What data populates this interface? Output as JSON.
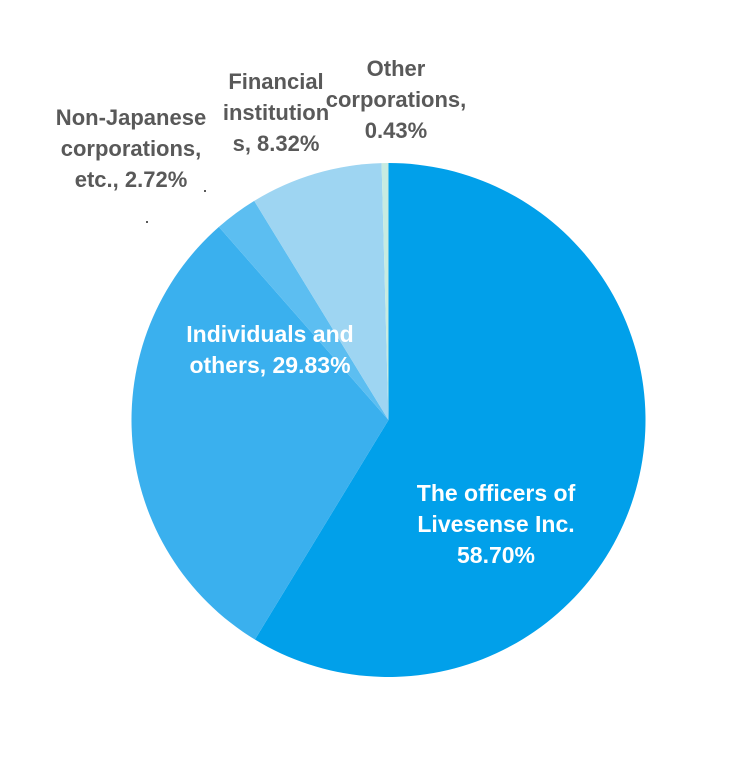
{
  "chart_data": {
    "type": "pie",
    "title": "",
    "direction": "clockwise",
    "start_angle_deg": 0,
    "legend": "none",
    "center": {
      "x": 388.5,
      "y": 420
    },
    "radius": 257,
    "series": [
      {
        "key": "officers",
        "label": "The officers of Livesense Inc.",
        "value": 58.7,
        "color": "#01A0EA"
      },
      {
        "key": "individuals",
        "label": "Individuals and others",
        "value": 29.83,
        "color": "#3AB0EE"
      },
      {
        "key": "non_japanese",
        "label": "Non-Japanese corporations, etc.",
        "value": 2.72,
        "color": "#5CBEF1"
      },
      {
        "key": "financial",
        "label": "Financial institutions",
        "value": 8.32,
        "color": "#9ED5F2"
      },
      {
        "key": "other",
        "label": "Other corporations",
        "value": 0.43,
        "color": "#C7EBE1"
      }
    ],
    "data_labels": [
      "The officers of Livesense Inc. 58.70%",
      "Individuals and others, 29.83%",
      "Non-Japanese corporations, etc., 2.72%",
      "Financial institutions, 8.32%",
      "Other corporations, 0.43%"
    ]
  },
  "labels": {
    "officers": {
      "lines": [
        "The officers of",
        "Livesense Inc.",
        "58.70%"
      ],
      "color": "#FFFFFF"
    },
    "individuals": {
      "lines": [
        "Individuals and",
        "others, 29.83%"
      ],
      "color": "#FFFFFF"
    },
    "non_japanese": {
      "lines": [
        "Non-Japanese",
        "corporations,",
        "etc., 2.72%"
      ],
      "color": "#595959"
    },
    "financial": {
      "lines": [
        "Financial",
        "institution",
        "s, 8.32%"
      ],
      "color": "#595959"
    },
    "other": {
      "lines": [
        "Other",
        "corporations,",
        "0.43%"
      ],
      "color": "#595959"
    }
  },
  "colors": {
    "label_dark": "#595959",
    "label_light": "#FFFFFF",
    "background": "#FFFFFF"
  }
}
